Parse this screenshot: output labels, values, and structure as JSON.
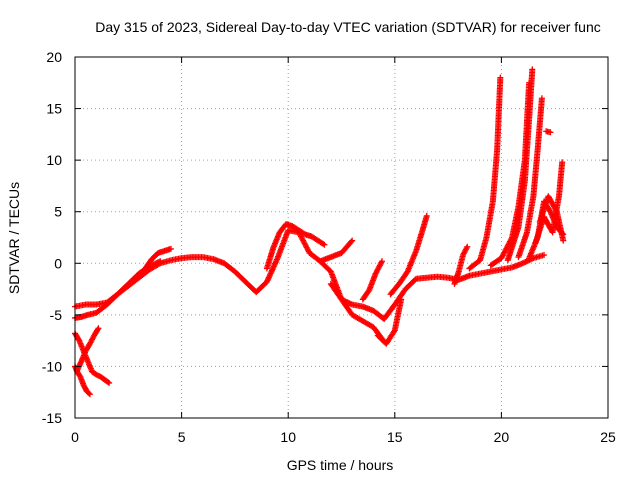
{
  "chart_data": {
    "type": "scatter",
    "title": "Day 315 of 2023, Sidereal Day-to-day VTEC variation (SDTVAR) for receiver func",
    "xlabel": "GPS time / hours",
    "ylabel": "SDTVAR / TECUs",
    "xlim": [
      0,
      25
    ],
    "ylim": [
      -15,
      20
    ],
    "xticks": [
      0,
      5,
      10,
      15,
      20,
      25
    ],
    "yticks": [
      -15,
      -10,
      -5,
      0,
      5,
      10,
      15,
      20
    ],
    "grid": true,
    "marker": "+",
    "color": "#ff0000",
    "series": [
      {
        "name": "track-main",
        "x": [
          0.0,
          0.5,
          1.0,
          1.5,
          2.0,
          2.5,
          3.0,
          3.5,
          4.0,
          4.5,
          5.0,
          5.5,
          6.0,
          6.5,
          7.0,
          7.5,
          8.0,
          8.5,
          9.0,
          9.5,
          10.0,
          10.5,
          11.0,
          11.5,
          12.0,
          12.5,
          13.0,
          13.5,
          14.0,
          14.5,
          15.0,
          15.5,
          16.0,
          16.5,
          17.0,
          17.5,
          18.0,
          18.5,
          19.0,
          19.5,
          20.0,
          20.5,
          21.0,
          21.5,
          22.0
        ],
        "y": [
          -4.2,
          -4.0,
          -4.0,
          -3.8,
          -3.0,
          -2.2,
          -1.4,
          -0.6,
          0.0,
          0.3,
          0.5,
          0.6,
          0.6,
          0.4,
          0.0,
          -0.8,
          -1.8,
          -2.8,
          -1.8,
          0.5,
          3.2,
          3.0,
          1.0,
          0.2,
          -0.8,
          -3.5,
          -4.0,
          -4.2,
          -4.6,
          -5.4,
          -4.0,
          -2.5,
          -1.5,
          -1.4,
          -1.3,
          -1.4,
          -1.6,
          -1.2,
          -1.0,
          -0.8,
          -0.6,
          -0.4,
          0.0,
          0.5,
          0.8
        ]
      },
      {
        "name": "track-lower",
        "x": [
          0.0,
          0.3,
          0.6,
          1.0,
          1.5,
          2.0,
          2.5,
          3.0,
          3.5,
          4.0
        ],
        "y": [
          -5.3,
          -5.2,
          -5.0,
          -4.8,
          -4.0,
          -3.0,
          -2.0,
          -1.0,
          -0.3,
          0.2
        ]
      },
      {
        "name": "track-start-drop",
        "x": [
          0.0,
          0.2,
          0.4,
          0.6,
          0.8,
          1.0,
          1.2,
          1.4,
          1.6
        ],
        "y": [
          -6.8,
          -7.5,
          -8.5,
          -9.5,
          -10.5,
          -10.8,
          -11.0,
          -11.3,
          -11.6
        ]
      },
      {
        "name": "track-start-dip",
        "x": [
          0.0,
          0.1,
          0.25,
          0.4,
          0.55,
          0.7
        ],
        "y": [
          -10.0,
          -10.5,
          -11.0,
          -11.8,
          -12.4,
          -12.7
        ]
      },
      {
        "name": "track-start-rise",
        "x": [
          0.1,
          0.3,
          0.5,
          0.7,
          0.9,
          1.1
        ],
        "y": [
          -10.4,
          -9.5,
          -8.5,
          -7.8,
          -7.0,
          -6.3
        ]
      },
      {
        "name": "track-early-hump",
        "x": [
          3.0,
          3.3,
          3.6,
          3.9,
          4.2,
          4.5
        ],
        "y": [
          -1.2,
          -0.5,
          0.4,
          1.0,
          1.2,
          1.4
        ]
      },
      {
        "name": "track-peak-upper",
        "x": [
          9.0,
          9.3,
          9.6,
          9.9,
          10.2,
          10.5,
          10.8,
          11.1,
          11.4,
          11.7
        ],
        "y": [
          -0.5,
          1.5,
          3.0,
          3.8,
          3.6,
          3.2,
          2.8,
          2.6,
          2.2,
          1.8
        ]
      },
      {
        "name": "track-noon-upper",
        "x": [
          11.5,
          12.0,
          12.5,
          13.0
        ],
        "y": [
          0.2,
          0.6,
          1.0,
          2.2
        ]
      },
      {
        "name": "track-noon-lower",
        "x": [
          12.0,
          12.5,
          13.0,
          13.5,
          14.0,
          14.5
        ],
        "y": [
          -2.0,
          -3.5,
          -5.0,
          -5.6,
          -6.2,
          -7.6
        ]
      },
      {
        "name": "track-dip-spike",
        "x": [
          14.2,
          14.6,
          15.0,
          15.3
        ],
        "y": [
          -7.0,
          -7.8,
          -6.5,
          -3.5
        ]
      },
      {
        "name": "track-mid-spike",
        "x": [
          14.8,
          15.2,
          15.6,
          16.0,
          16.3,
          16.5
        ],
        "y": [
          -3.0,
          -2.0,
          -0.8,
          1.2,
          3.2,
          4.6
        ]
      },
      {
        "name": "track-bump-a",
        "x": [
          13.5,
          13.8,
          14.1,
          14.4
        ],
        "y": [
          -3.5,
          -2.6,
          -1.0,
          0.2
        ]
      },
      {
        "name": "track-bump-b",
        "x": [
          17.8,
          18.0,
          18.2,
          18.4
        ],
        "y": [
          -2.0,
          -0.8,
          0.8,
          1.6
        ]
      },
      {
        "name": "track-evening-a",
        "x": [
          18.5,
          19.0,
          19.3,
          19.6,
          19.8,
          19.95
        ],
        "y": [
          -0.5,
          0.3,
          2.5,
          6.0,
          11.0,
          18.0
        ]
      },
      {
        "name": "track-evening-b",
        "x": [
          19.5,
          20.0,
          20.5,
          20.8,
          21.1,
          21.3
        ],
        "y": [
          -0.2,
          0.5,
          2.5,
          5.5,
          10.0,
          17.5
        ]
      },
      {
        "name": "track-evening-c",
        "x": [
          20.3,
          20.8,
          21.1,
          21.3,
          21.45
        ],
        "y": [
          0.3,
          3.5,
          8.0,
          14.0,
          18.8
        ]
      },
      {
        "name": "track-evening-d",
        "x": [
          20.8,
          21.2,
          21.5,
          21.7,
          21.9
        ],
        "y": [
          0.6,
          3.0,
          6.5,
          11.0,
          16.0
        ]
      },
      {
        "name": "track-late-a",
        "x": [
          21.3,
          21.7,
          22.0,
          22.3,
          22.6,
          22.9
        ],
        "y": [
          0.5,
          2.5,
          6.0,
          5.0,
          3.5,
          2.8
        ]
      },
      {
        "name": "track-late-b",
        "x": [
          21.6,
          22.0,
          22.4,
          22.7,
          22.85
        ],
        "y": [
          2.0,
          4.5,
          3.0,
          6.5,
          9.8
        ]
      },
      {
        "name": "track-late-c",
        "x": [
          21.8,
          22.2,
          22.6,
          22.9
        ],
        "y": [
          4.0,
          6.5,
          5.0,
          2.2
        ]
      },
      {
        "name": "track-isolated",
        "x": [
          22.1,
          22.3
        ],
        "y": [
          12.8,
          12.7
        ]
      }
    ]
  }
}
